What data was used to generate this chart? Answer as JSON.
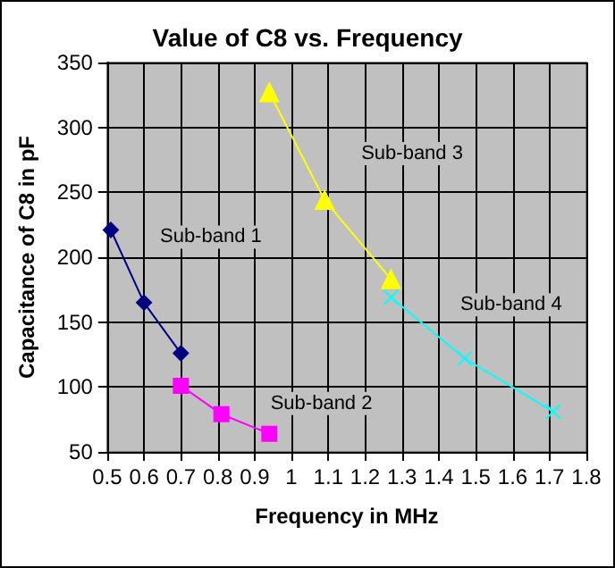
{
  "chart_data": {
    "type": "line",
    "title": "Value of C8 vs. Frequency",
    "xlabel": "Frequency in MHz",
    "ylabel": "Capacitance of C8 in pF",
    "series": [
      {
        "name": "Sub-band 1",
        "color": "#000080",
        "marker": "diamond",
        "x": [
          0.51,
          0.6,
          0.7
        ],
        "values": [
          221,
          165,
          126
        ]
      },
      {
        "name": "Sub-band 2",
        "color": "#ff00ff",
        "marker": "square",
        "x": [
          0.7,
          0.81,
          0.94
        ],
        "values": [
          101,
          79,
          64
        ]
      },
      {
        "name": "Sub-band 3",
        "color": "#ffff00",
        "marker": "triangle",
        "x": [
          0.94,
          1.09,
          1.27
        ],
        "values": [
          327,
          244,
          183
        ]
      },
      {
        "name": "Sub-band 4",
        "color": "#00ffff",
        "marker": "cross",
        "x": [
          1.27,
          1.47,
          1.71
        ],
        "values": [
          169,
          122,
          81
        ]
      }
    ],
    "xlim": [
      0.5,
      1.8
    ],
    "xticks": [
      0.5,
      0.6,
      0.7,
      0.8,
      0.9,
      1,
      1.1,
      1.2,
      1.3,
      1.4,
      1.5,
      1.6,
      1.7,
      1.8
    ],
    "ylim": [
      50,
      350
    ],
    "yticks": [
      50,
      100,
      150,
      200,
      250,
      300,
      350
    ],
    "grid": true,
    "line_style": "solid"
  }
}
